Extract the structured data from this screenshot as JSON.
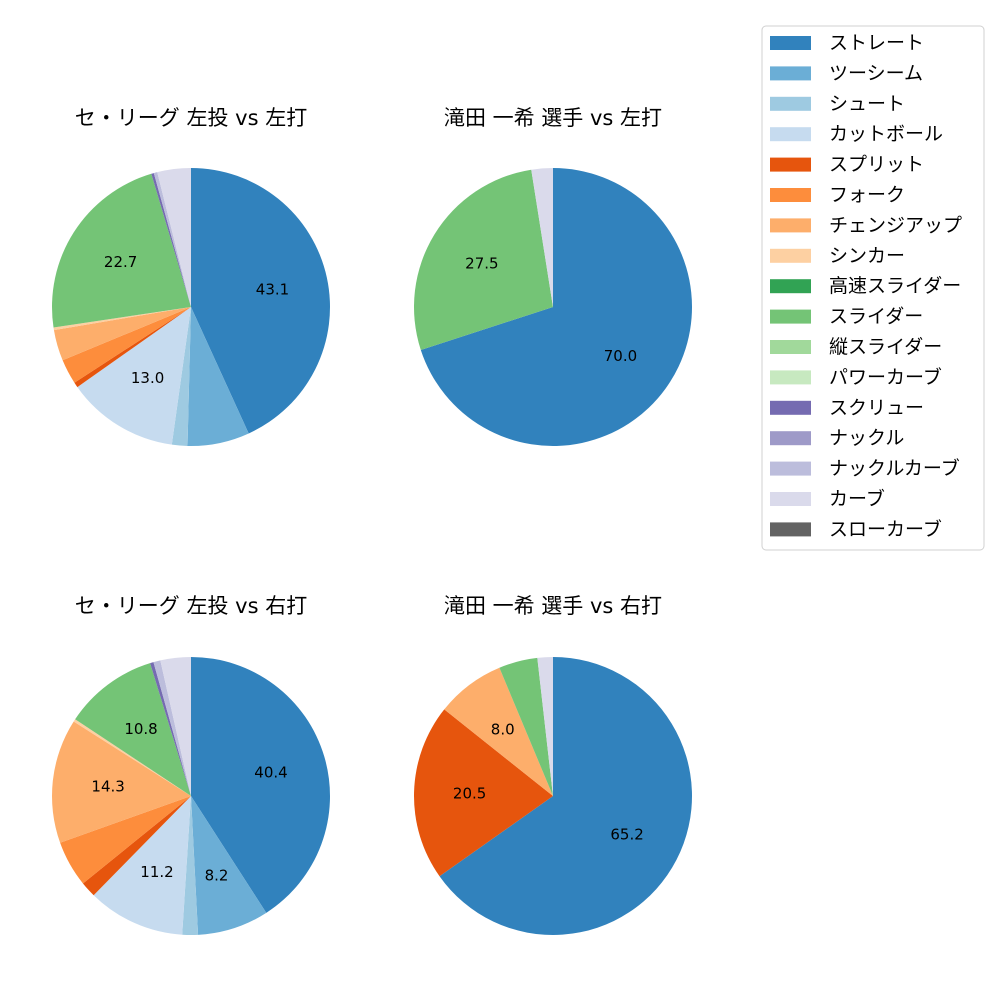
{
  "legend": {
    "entries": [
      {
        "name": "ストレート",
        "color": "#3182bd"
      },
      {
        "name": "ツーシーム",
        "color": "#6baed6"
      },
      {
        "name": "シュート",
        "color": "#9ecae1"
      },
      {
        "name": "カットボール",
        "color": "#c6dbef"
      },
      {
        "name": "スプリット",
        "color": "#e6550d"
      },
      {
        "name": "フォーク",
        "color": "#fd8d3c"
      },
      {
        "name": "チェンジアップ",
        "color": "#fdae6b"
      },
      {
        "name": "シンカー",
        "color": "#fdd0a2"
      },
      {
        "name": "高速スライダー",
        "color": "#31a354"
      },
      {
        "name": "スライダー",
        "color": "#74c476"
      },
      {
        "name": "縦スライダー",
        "color": "#a1d99b"
      },
      {
        "name": "パワーカーブ",
        "color": "#c7e9c0"
      },
      {
        "name": "スクリュー",
        "color": "#756bb1"
      },
      {
        "name": "ナックル",
        "color": "#9e9ac8"
      },
      {
        "name": "ナックルカーブ",
        "color": "#bcbddc"
      },
      {
        "name": "カーブ",
        "color": "#dadaeb"
      },
      {
        "name": "スローカーブ",
        "color": "#636363"
      }
    ]
  },
  "chart_data": [
    {
      "type": "pie",
      "title": "セ・リーグ 左投 vs 左打",
      "slices": [
        {
          "name": "ストレート",
          "value": 43.1,
          "label": "43.1"
        },
        {
          "name": "ツーシーム",
          "value": 7.2,
          "label": ""
        },
        {
          "name": "シュート",
          "value": 1.8,
          "label": ""
        },
        {
          "name": "カットボール",
          "value": 13.0,
          "label": "13.0"
        },
        {
          "name": "スプリット",
          "value": 0.6,
          "label": ""
        },
        {
          "name": "フォーク",
          "value": 2.9,
          "label": ""
        },
        {
          "name": "チェンジアップ",
          "value": 3.6,
          "label": ""
        },
        {
          "name": "シンカー",
          "value": 0.3,
          "label": ""
        },
        {
          "name": "スライダー",
          "value": 22.7,
          "label": "22.7"
        },
        {
          "name": "スクリュー",
          "value": 0.3,
          "label": ""
        },
        {
          "name": "ナックルカーブ",
          "value": 0.4,
          "label": ""
        },
        {
          "name": "カーブ",
          "value": 3.9,
          "label": ""
        }
      ]
    },
    {
      "type": "pie",
      "title": "滝田 一希 選手 vs 左打",
      "slices": [
        {
          "name": "ストレート",
          "value": 70.0,
          "label": "70.0"
        },
        {
          "name": "スライダー",
          "value": 27.5,
          "label": "27.5"
        },
        {
          "name": "カーブ",
          "value": 2.5,
          "label": ""
        }
      ]
    },
    {
      "type": "pie",
      "title": "セ・リーグ 左投 vs 右打",
      "slices": [
        {
          "name": "ストレート",
          "value": 40.4,
          "label": "40.4"
        },
        {
          "name": "ツーシーム",
          "value": 8.2,
          "label": "8.2"
        },
        {
          "name": "シュート",
          "value": 1.8,
          "label": ""
        },
        {
          "name": "カットボール",
          "value": 11.2,
          "label": "11.2"
        },
        {
          "name": "スプリット",
          "value": 1.8,
          "label": ""
        },
        {
          "name": "フォーク",
          "value": 5.3,
          "label": ""
        },
        {
          "name": "チェンジアップ",
          "value": 14.3,
          "label": "14.3"
        },
        {
          "name": "シンカー",
          "value": 0.3,
          "label": ""
        },
        {
          "name": "スライダー",
          "value": 10.8,
          "label": "10.8"
        },
        {
          "name": "スクリュー",
          "value": 0.4,
          "label": ""
        },
        {
          "name": "ナックルカーブ",
          "value": 0.8,
          "label": ""
        },
        {
          "name": "カーブ",
          "value": 3.5,
          "label": ""
        }
      ]
    },
    {
      "type": "pie",
      "title": "滝田 一希 選手 vs 右打",
      "slices": [
        {
          "name": "ストレート",
          "value": 65.2,
          "label": "65.2"
        },
        {
          "name": "スプリット",
          "value": 20.5,
          "label": "20.5"
        },
        {
          "name": "チェンジアップ",
          "value": 8.0,
          "label": "8.0"
        },
        {
          "name": "スライダー",
          "value": 4.5,
          "label": ""
        },
        {
          "name": "カーブ",
          "value": 1.8,
          "label": ""
        }
      ]
    }
  ]
}
